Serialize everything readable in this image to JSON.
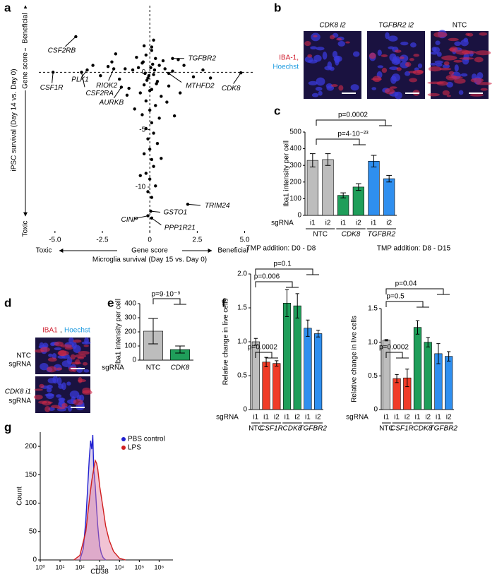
{
  "figure": {
    "panel_labels": [
      "a",
      "b",
      "c",
      "d",
      "e",
      "f",
      "g"
    ],
    "panel_b": {
      "headers": [
        "CDK8 i2",
        "TGFBR2 i2",
        "NTC"
      ],
      "stain": [
        "IBA-1,",
        "Hoechst"
      ]
    },
    "panel_d": {
      "stain": [
        "IBA1",
        ",",
        "Hoechst"
      ],
      "rows": [
        [
          "NTC",
          "sgRNA"
        ],
        [
          "CDK8 i1",
          "sgRNA"
        ]
      ]
    }
  },
  "chart_data": [
    {
      "type": "scatter",
      "x_label": "Microglia survival (Day 15 vs. Day 0)",
      "y_label": "iPSC survival (Day 14 vs. Day 0)",
      "score_label": "Gene score",
      "low_label": "Toxic",
      "high_label": "Beneficial",
      "color": "#000000",
      "x": [
        0.1,
        -0.2,
        0.3,
        -0.4,
        0.5,
        -0.6,
        0.8,
        -0.9,
        1.2,
        -1.3,
        0.2,
        -0.1,
        0.4,
        -0.3,
        0.1,
        -0.5,
        0.6,
        -0.2,
        0.3,
        0,
        -0.4,
        0.5,
        0.1,
        -0.2,
        0.2,
        -0.1,
        0.4,
        0,
        -0.3,
        0.1,
        0.2,
        -0.2,
        0,
        0.3,
        -0.1,
        0.1,
        1.8,
        2.3,
        -2.0,
        -1.6,
        1.0,
        -1.1,
        2.8,
        -2.6,
        0.7,
        -0.7,
        1.5,
        -1.8,
        -2.2,
        0.9,
        -0.8,
        1.3,
        3.2,
        -3.0,
        0.6,
        -0.5,
        -1.2,
        1.6,
        -0.3,
        0.2,
        0.05,
        -0.05,
        0.15,
        -0.15,
        0.25,
        -0.25,
        0.35,
        -0.35,
        0.0,
        0.1
      ],
      "y": [
        1.9,
        1.5,
        1.2,
        0.8,
        0.6,
        0.4,
        0.3,
        0.2,
        0.1,
        0.3,
        -0.2,
        -0.5,
        -0.8,
        -1.1,
        -1.5,
        -1.8,
        -2.1,
        -2.5,
        -2.9,
        -3.3,
        -3.7,
        -4.0,
        -4.4,
        -4.9,
        -5.3,
        -5.8,
        -6.2,
        -6.7,
        -7.1,
        -7.6,
        -8.2,
        -8.8,
        -9.3,
        -9.9,
        -10.4,
        -10.9,
        0.6,
        -0.4,
        0.9,
        -0.6,
        -1.2,
        -1.4,
        0.2,
        -0.3,
        1.0,
        1.3,
        1.1,
        1.6,
        0.5,
        -2.6,
        -3.2,
        -3.8,
        -0.5,
        0.6,
        -7.5,
        -9.0,
        -2.0,
        -1.8,
        2.3,
        2.8,
        0.4,
        -0.3,
        0.7,
        -0.7,
        0.2,
        -0.1,
        -1.0,
        0.9,
        -1.6,
        2.2
      ],
      "labeled_points": {
        "labels": [
          "CSF2RB",
          "CSF1R",
          "CSF2RA",
          "PLK1",
          "RIOK2",
          "AURKB",
          "TGFBR2",
          "MTHFD2",
          "CDK8",
          "TRIM24",
          "GSTO1",
          "CINP",
          "PPP1R21"
        ],
        "x": [
          -3.9,
          -5.1,
          -3.6,
          -3.3,
          -1.9,
          -1.5,
          1.2,
          1.0,
          4.8,
          2.0,
          0.05,
          -0.1,
          0.1
        ],
        "y": [
          3.1,
          0.0,
          0.0,
          0.2,
          0.3,
          -1.3,
          1.2,
          -0.1,
          -0.05,
          -11.5,
          -12.1,
          -12.5,
          -12.7
        ]
      },
      "xlim": [
        -5.85,
        5.5
      ],
      "ylim": [
        -14,
        5.8
      ],
      "xticks": [
        {
          "value": -5,
          "label": "-5.0"
        },
        -2.5,
        0,
        2.5,
        {
          "value": 5,
          "label": "5.0"
        }
      ],
      "yticks": [
        0,
        -5,
        -10
      ]
    },
    {
      "type": "bar",
      "y_label": "Iba1 intensity per cell",
      "x_label": "sgRNA",
      "series": [
        {
          "name": "NTC",
          "italic": false,
          "color": "#bdbdbd",
          "categories": [
            "i1",
            "i2"
          ],
          "values": [
            330,
            335
          ],
          "errors": [
            40,
            35
          ]
        },
        {
          "name": "CDK8",
          "italic": true,
          "color": "#1f9e5a",
          "categories": [
            "i1",
            "i2"
          ],
          "values": [
            120,
            170
          ],
          "errors": [
            15,
            20
          ]
        },
        {
          "name": "TGFBR2",
          "italic": true,
          "color": "#2f8fef",
          "categories": [
            "i1",
            "i2"
          ],
          "values": [
            325,
            220
          ],
          "errors": [
            35,
            20
          ]
        }
      ],
      "annotations": [
        "p=0.0002",
        "p=4·10⁻²³"
      ],
      "ylim": [
        0,
        500
      ],
      "yticks": [
        0,
        100,
        200,
        300,
        400,
        500
      ]
    },
    {
      "type": "bar",
      "y_label": "Iba1 intensity per cell",
      "x_label": "sgRNA",
      "categories": [
        "NTC",
        "CDK8"
      ],
      "italic": [
        false,
        true
      ],
      "colors": [
        "#bdbdbd",
        "#1f9e5a"
      ],
      "values": [
        205,
        75
      ],
      "errors": [
        90,
        25
      ],
      "annotations": [
        "p=9·10⁻⁹"
      ],
      "ylim": [
        0,
        400
      ],
      "yticks": [
        0,
        100,
        200,
        300,
        400
      ]
    },
    {
      "type": "bar",
      "title": "TMP addition:  D0 - D8",
      "y_label": "Relative change in live cells",
      "x_label": "sgRNA",
      "series": [
        {
          "name": "NTC",
          "italic": false,
          "color": "#bdbdbd",
          "categories": [
            "i1"
          ],
          "values": [
            1.0
          ],
          "errors": [
            0.05
          ]
        },
        {
          "name": "CSF1R",
          "italic": true,
          "color": "#f03c28",
          "categories": [
            "i1",
            "i2"
          ],
          "values": [
            0.7,
            0.68
          ],
          "errors": [
            0.07,
            0.04
          ]
        },
        {
          "name": "CDK8",
          "italic": true,
          "color": "#1f9e5a",
          "categories": [
            "i1",
            "i2"
          ],
          "values": [
            1.57,
            1.53
          ],
          "errors": [
            0.2,
            0.18
          ]
        },
        {
          "name": "TGFBR2",
          "italic": true,
          "color": "#2f8fef",
          "categories": [
            "i1",
            "i2"
          ],
          "values": [
            1.2,
            1.12
          ],
          "errors": [
            0.12,
            0.05
          ]
        }
      ],
      "annotations": [
        "p=0.1",
        "p=0.006",
        "p=0.0002"
      ],
      "ylim": [
        0,
        2.0
      ],
      "yticks": [
        0,
        0.5,
        {
          "value": 1,
          "label": "1.0"
        },
        1.5,
        {
          "value": 2,
          "label": "2.0"
        }
      ]
    },
    {
      "type": "bar",
      "title": "TMP addition:  D8 - D15",
      "y_label": "Relative change in live cells",
      "x_label": "sgRNA",
      "series": [
        {
          "name": "NTC",
          "italic": false,
          "color": "#bdbdbd",
          "categories": [
            "i1"
          ],
          "values": [
            1.03
          ],
          "errors": [
            0.01
          ]
        },
        {
          "name": "CSF1R",
          "italic": true,
          "color": "#f03c28",
          "categories": [
            "i1",
            "i2"
          ],
          "values": [
            0.46,
            0.47
          ],
          "errors": [
            0.06,
            0.13
          ]
        },
        {
          "name": "CDK8",
          "italic": true,
          "color": "#1f9e5a",
          "categories": [
            "i1",
            "i2"
          ],
          "values": [
            1.22,
            1.0
          ],
          "errors": [
            0.1,
            0.07
          ]
        },
        {
          "name": "TGFBR2",
          "italic": true,
          "color": "#2f8fef",
          "categories": [
            "i1",
            "i2"
          ],
          "values": [
            0.83,
            0.79
          ],
          "errors": [
            0.15,
            0.07
          ]
        }
      ],
      "annotations": [
        "p=0.04",
        "p=0.5",
        "p=0.0002"
      ],
      "ylim": [
        0,
        1.5
      ],
      "yticks": [
        0,
        0.5,
        {
          "value": 1,
          "label": "1.0"
        },
        1.5
      ]
    },
    {
      "type": "line",
      "x_label": "CD38",
      "y_label": "Count",
      "log_x": true,
      "legend": "upper right",
      "series": [
        {
          "name": "PBS control",
          "color": "#1f1fd0",
          "x": [
            100,
            150,
            200,
            250,
            300,
            350,
            400,
            450,
            500,
            600,
            700,
            800,
            900,
            1000,
            1200,
            1500,
            2000
          ],
          "values": [
            0,
            20,
            70,
            130,
            180,
            210,
            195,
            220,
            160,
            130,
            90,
            60,
            40,
            25,
            12,
            4,
            0
          ]
        },
        {
          "name": "LPS",
          "color": "#d01f1f",
          "x": [
            50,
            100,
            200,
            300,
            400,
            500,
            600,
            700,
            800,
            1000,
            1500,
            2000,
            3000,
            5000,
            10000,
            20000
          ],
          "values": [
            0,
            8,
            50,
            105,
            140,
            160,
            175,
            170,
            160,
            130,
            90,
            60,
            35,
            15,
            3,
            0
          ]
        }
      ],
      "xlim": [
        1,
        5000000
      ],
      "ylim": [
        0,
        225
      ],
      "xticks": [
        {
          "value": 1,
          "label": "10⁰"
        },
        {
          "value": 10,
          "label": "10¹"
        },
        {
          "value": 100,
          "label": "10²"
        },
        {
          "value": 1000,
          "label": "10³"
        },
        {
          "value": 10000,
          "label": "10⁴"
        },
        {
          "value": 100000,
          "label": "10⁵"
        },
        {
          "value": 1000000,
          "label": "10⁶"
        }
      ],
      "yticks": [
        0,
        50,
        100,
        150,
        200
      ]
    }
  ]
}
